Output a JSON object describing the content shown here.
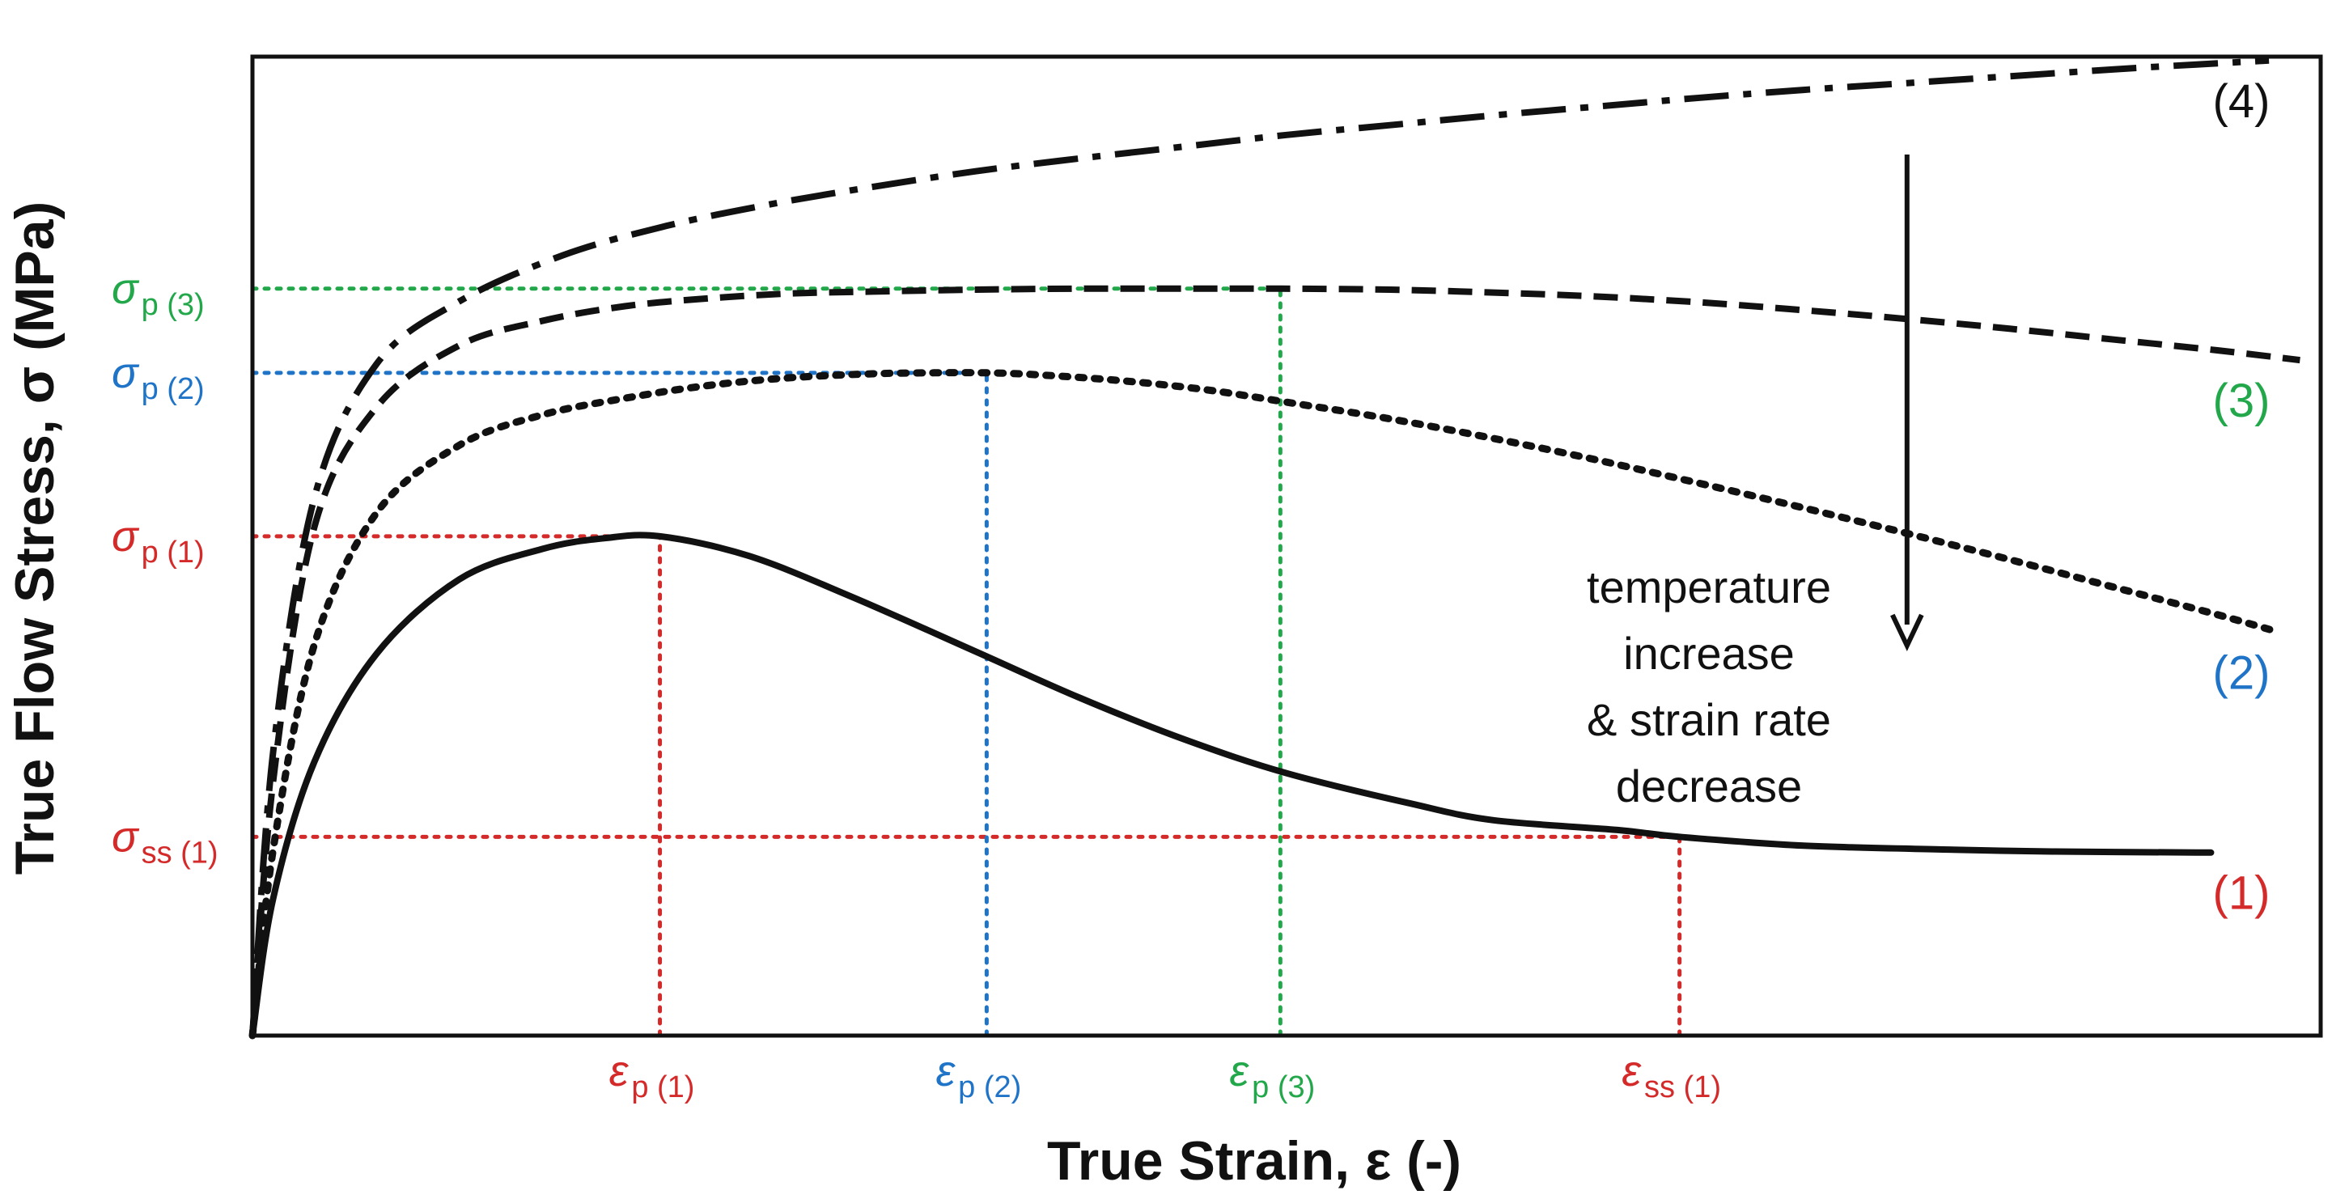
{
  "chart_data": {
    "type": "line",
    "title": "",
    "xlabel": "True Strain, ε (-)",
    "ylabel": "True Flow Stress, σ (MPa)",
    "xlim": [
      0,
      1.0
    ],
    "ylim": [
      0,
      1.0
    ],
    "grid": false,
    "legend": "inline labels at right end of each curve",
    "colors": {
      "red": "#d42a2a",
      "blue": "#1f74c8",
      "green": "#22a84a",
      "black": "#111111"
    },
    "series": [
      {
        "name": "(1)",
        "color": "#d42a2a",
        "style": "solid",
        "x": [
          0.0,
          0.01,
          0.03,
          0.06,
          0.1,
          0.14,
          0.17,
          0.197,
          0.24,
          0.29,
          0.35,
          0.4,
          0.45,
          0.5,
          0.56,
          0.6,
          0.66,
          0.69,
          0.75,
          0.82,
          0.87,
          0.94,
          0.945
        ],
        "y": [
          0.0,
          0.14,
          0.28,
          0.39,
          0.466,
          0.497,
          0.508,
          0.51,
          0.49,
          0.448,
          0.392,
          0.345,
          0.303,
          0.268,
          0.237,
          0.22,
          0.21,
          0.203,
          0.194,
          0.19,
          0.188,
          0.187,
          0.187
        ]
      },
      {
        "name": "(2)",
        "color": "#1f74c8",
        "style": "dotted",
        "x": [
          0.0,
          0.01,
          0.03,
          0.06,
          0.1,
          0.14,
          0.18,
          0.22,
          0.26,
          0.3,
          0.33,
          0.355,
          0.38,
          0.42,
          0.46,
          0.5,
          0.55,
          0.6,
          0.65,
          0.7,
          0.75,
          0.8,
          0.85,
          0.9,
          0.95,
          0.98
        ],
        "y": [
          0.0,
          0.19,
          0.4,
          0.534,
          0.603,
          0.634,
          0.651,
          0.664,
          0.672,
          0.676,
          0.677,
          0.677,
          0.675,
          0.669,
          0.66,
          0.647,
          0.63,
          0.61,
          0.588,
          0.564,
          0.539,
          0.513,
          0.486,
          0.458,
          0.43,
          0.412
        ]
      },
      {
        "name": "(3)",
        "color": "#22a84a",
        "style": "dashed",
        "x": [
          0.0,
          0.01,
          0.03,
          0.06,
          0.1,
          0.14,
          0.18,
          0.22,
          0.26,
          0.3,
          0.35,
          0.4,
          0.45,
          0.497,
          0.55,
          0.6,
          0.65,
          0.7,
          0.75,
          0.8,
          0.85,
          0.9,
          0.95,
          0.99
        ],
        "y": [
          0.0,
          0.26,
          0.52,
          0.642,
          0.705,
          0.73,
          0.745,
          0.753,
          0.758,
          0.76,
          0.762,
          0.763,
          0.763,
          0.763,
          0.762,
          0.759,
          0.755,
          0.749,
          0.741,
          0.732,
          0.722,
          0.711,
          0.7,
          0.69
        ]
      },
      {
        "name": "(4)",
        "color": "#111111",
        "style": "dashdot",
        "x": [
          0.0,
          0.01,
          0.03,
          0.06,
          0.1,
          0.15,
          0.2,
          0.25,
          0.3,
          0.35,
          0.4,
          0.45,
          0.5,
          0.55,
          0.6,
          0.65,
          0.7,
          0.75,
          0.8,
          0.85,
          0.9,
          0.94,
          0.975
        ],
        "y": [
          0.0,
          0.29,
          0.55,
          0.686,
          0.75,
          0.797,
          0.827,
          0.849,
          0.867,
          0.883,
          0.896,
          0.908,
          0.92,
          0.93,
          0.94,
          0.949,
          0.958,
          0.966,
          0.973,
          0.98,
          0.987,
          0.992,
          0.996
        ]
      }
    ],
    "reference_lines": [
      {
        "axis": "y",
        "name": "sigma-p-3",
        "value": 0.763,
        "color": "#22a84a",
        "x_to": 0.497
      },
      {
        "axis": "y",
        "name": "sigma-p-2",
        "value": 0.677,
        "color": "#1f74c8",
        "x_to": 0.355
      },
      {
        "axis": "y",
        "name": "sigma-p-1",
        "value": 0.51,
        "color": "#d42a2a",
        "x_to": 0.197
      },
      {
        "axis": "y",
        "name": "sigma-ss-1",
        "value": 0.203,
        "color": "#d42a2a",
        "x_to": 0.69
      },
      {
        "axis": "x",
        "name": "epsilon-p-1",
        "value": 0.197,
        "color": "#d42a2a",
        "y_to": 0.51
      },
      {
        "axis": "x",
        "name": "epsilon-p-2",
        "value": 0.355,
        "color": "#1f74c8",
        "y_to": 0.677
      },
      {
        "axis": "x",
        "name": "epsilon-p-3",
        "value": 0.497,
        "color": "#22a84a",
        "y_to": 0.763
      },
      {
        "axis": "x",
        "name": "epsilon-ss-1",
        "value": 0.69,
        "color": "#d42a2a",
        "y_to": 0.203
      }
    ],
    "y_tick_labels": [
      {
        "name": "sigma-p-3",
        "symbol": "σ",
        "sub": "p (3)",
        "value": 0.763,
        "color": "#22a84a"
      },
      {
        "name": "sigma-p-2",
        "symbol": "σ",
        "sub": "p (2)",
        "value": 0.677,
        "color": "#1f74c8"
      },
      {
        "name": "sigma-p-1",
        "symbol": "σ",
        "sub": "p (1)",
        "value": 0.51,
        "color": "#d42a2a"
      },
      {
        "name": "sigma-ss-1",
        "symbol": "σ",
        "sub": "ss (1)",
        "value": 0.203,
        "color": "#d42a2a"
      }
    ],
    "x_tick_labels": [
      {
        "name": "epsilon-p-1",
        "symbol": "ε",
        "sub": "p (1)",
        "value": 0.197,
        "color": "#d42a2a"
      },
      {
        "name": "epsilon-p-2",
        "symbol": "ε",
        "sub": "p (2)",
        "value": 0.355,
        "color": "#1f74c8"
      },
      {
        "name": "epsilon-p-3",
        "symbol": "ε",
        "sub": "p (3)",
        "value": 0.497,
        "color": "#22a84a"
      },
      {
        "name": "epsilon-ss-1",
        "symbol": "ε",
        "sub": "ss (1)",
        "value": 0.69,
        "color": "#d42a2a"
      }
    ],
    "annotations": {
      "arrow_text": [
        "temperature",
        "increase",
        "& strain rate",
        "decrease"
      ],
      "arrow_from": [
        0.8,
        0.9
      ],
      "arrow_to": [
        0.8,
        0.4
      ]
    }
  }
}
